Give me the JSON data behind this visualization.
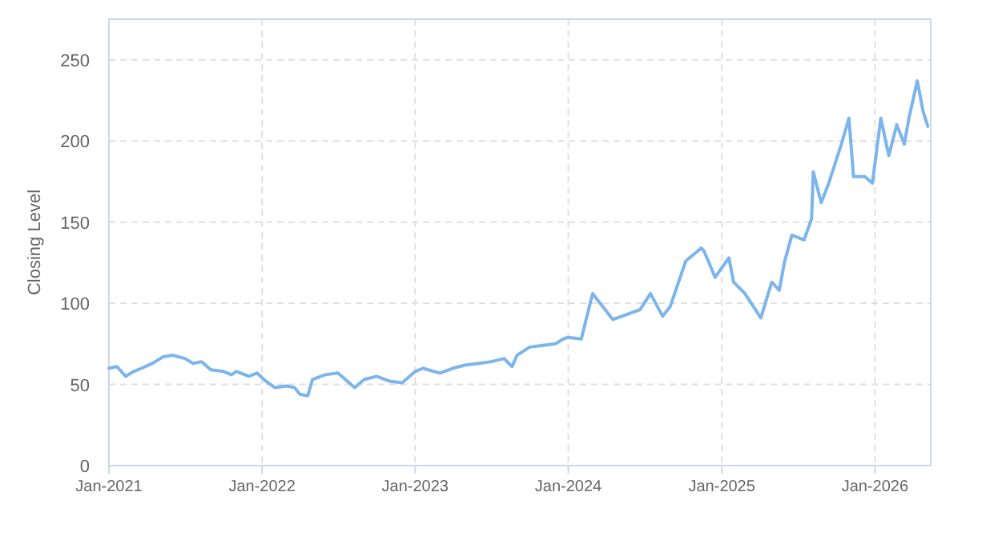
{
  "chart_data": {
    "type": "line",
    "ylabel": "Closing Level",
    "xlim": [
      "2021-01-01",
      "2026-05-14"
    ],
    "ylim": [
      0,
      275
    ],
    "xticks": [
      {
        "value": "2021-01-01",
        "label": "Jan-2021"
      },
      {
        "value": "2022-01-01",
        "label": "Jan-2022"
      },
      {
        "value": "2023-01-01",
        "label": "Jan-2023"
      },
      {
        "value": "2024-01-01",
        "label": "Jan-2024"
      },
      {
        "value": "2025-01-01",
        "label": "Jan-2025"
      },
      {
        "value": "2026-01-01",
        "label": "Jan-2026"
      }
    ],
    "yticks": [
      0,
      50,
      100,
      150,
      200,
      250
    ],
    "grid": true,
    "line_style": "solid",
    "marker": "none",
    "x": [
      "2021-01-01",
      "2021-01-20",
      "2021-02-10",
      "2021-03-01",
      "2021-03-20",
      "2021-04-15",
      "2021-05-10",
      "2021-06-01",
      "2021-07-01",
      "2021-07-20",
      "2021-08-10",
      "2021-09-01",
      "2021-10-01",
      "2021-10-20",
      "2021-11-01",
      "2021-12-01",
      "2021-12-20",
      "2022-01-10",
      "2022-02-01",
      "2022-03-01",
      "2022-03-20",
      "2022-04-01",
      "2022-04-20",
      "2022-05-01",
      "2022-06-01",
      "2022-07-01",
      "2022-08-01",
      "2022-08-10",
      "2022-09-01",
      "2022-10-01",
      "2022-11-01",
      "2022-12-01",
      "2023-01-01",
      "2023-01-20",
      "2023-02-01",
      "2023-03-01",
      "2023-04-01",
      "2023-05-01",
      "2023-06-01",
      "2023-07-01",
      "2023-08-01",
      "2023-08-20",
      "2023-09-01",
      "2023-10-01",
      "2023-11-01",
      "2023-12-01",
      "2023-12-20",
      "2024-01-01",
      "2024-02-01",
      "2024-02-28",
      "2024-04-16",
      "2024-06-20",
      "2024-07-15",
      "2024-08-13",
      "2024-08-31",
      "2024-10-07",
      "2024-11-13",
      "2024-11-20",
      "2024-12-16",
      "2025-01-18",
      "2025-01-29",
      "2025-02-25",
      "2025-04-04",
      "2025-04-30",
      "2025-05-18",
      "2025-05-30",
      "2025-06-17",
      "2025-07-16",
      "2025-08-03",
      "2025-08-07",
      "2025-08-26",
      "2025-09-13",
      "2025-10-13",
      "2025-10-31",
      "2025-11-11",
      "2025-12-08",
      "2025-12-26",
      "2026-01-15",
      "2026-02-03",
      "2026-02-22",
      "2026-03-12",
      "2026-03-23",
      "2026-04-12",
      "2026-04-26",
      "2026-05-07"
    ],
    "series": [
      {
        "color": "#7cb5ec",
        "values": [
          60,
          61,
          55,
          58,
          60,
          63,
          67,
          68,
          66,
          63,
          64,
          59,
          58,
          56,
          58,
          55,
          57,
          52,
          48,
          49,
          48,
          44,
          43,
          53,
          56,
          57,
          50,
          48,
          53,
          55,
          52,
          51,
          58,
          60,
          59,
          57,
          60,
          62,
          63,
          64,
          66,
          61,
          68,
          73,
          74,
          75,
          78,
          79,
          78,
          106,
          90,
          96,
          106,
          92,
          98,
          126,
          134,
          132,
          116,
          128,
          113,
          106,
          91,
          113,
          108,
          125,
          142,
          139,
          152,
          181,
          162,
          174,
          198,
          214,
          178,
          178,
          174,
          214,
          191,
          210,
          198,
          214,
          237,
          218,
          209
        ]
      }
    ]
  }
}
